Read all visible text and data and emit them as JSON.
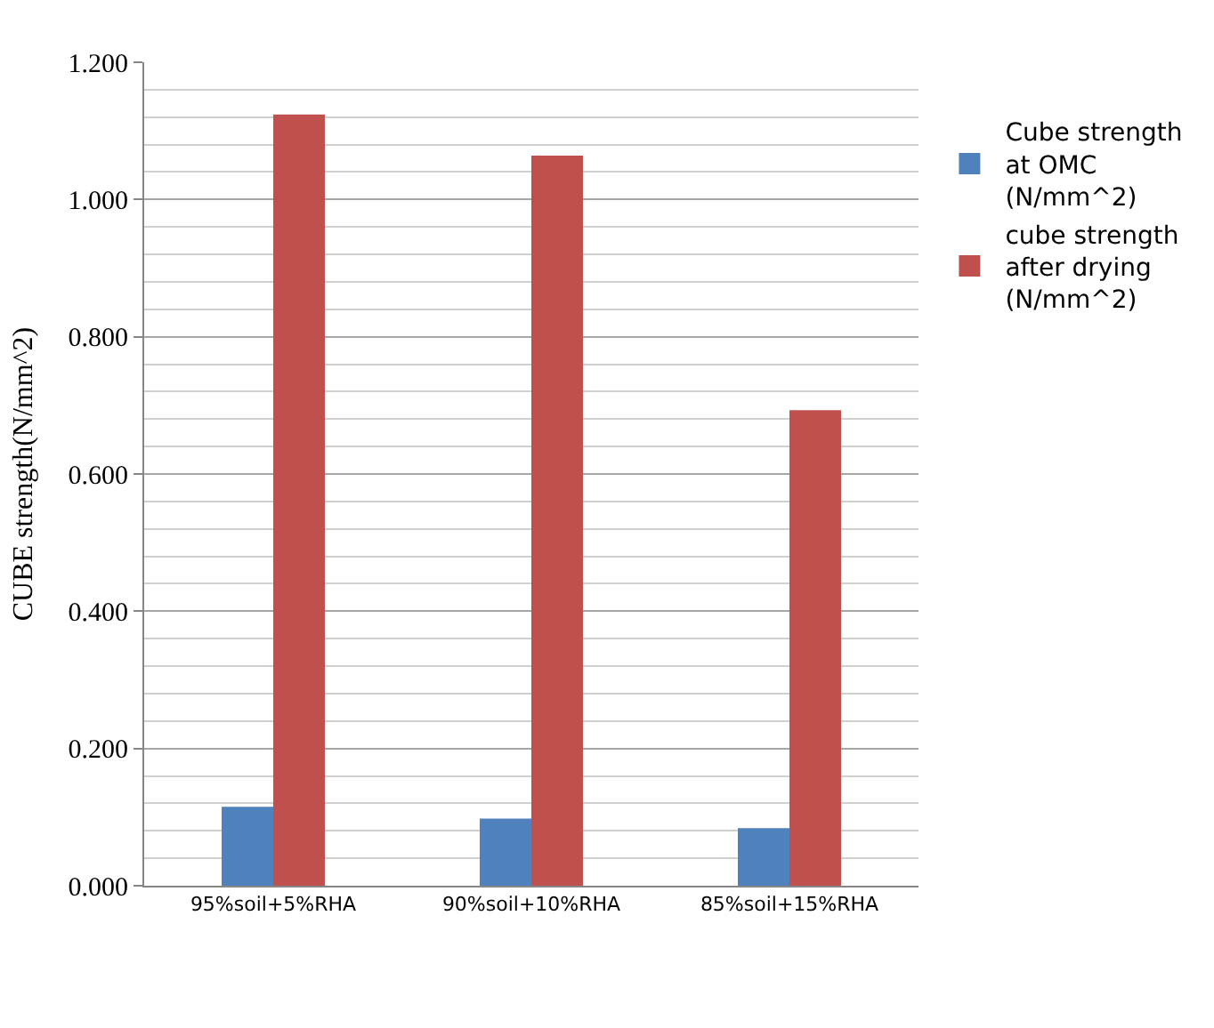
{
  "chart_data": {
    "type": "bar",
    "ylabel": "CUBE strength(N/mm^2)",
    "categories": [
      "95%soil+5%RHA",
      "90%soil+10%RHA",
      "85%soil+15%RHA"
    ],
    "series": [
      {
        "name": "Cube strength at OMC (N/mm^2)",
        "color": "#4f81bd",
        "values": [
          0.115,
          0.098,
          0.084
        ]
      },
      {
        "name": "cube strength after drying (N/mm^2)",
        "color": "#c0504d",
        "values": [
          1.124,
          1.064,
          0.693
        ]
      }
    ],
    "ylim": [
      0,
      1.2
    ],
    "yticks": [
      {
        "value": 0,
        "label": "0.000"
      },
      {
        "value": 0.2,
        "label": "0.200"
      },
      {
        "value": 0.4,
        "label": "0.400"
      },
      {
        "value": 0.6,
        "label": "0.600"
      },
      {
        "value": 0.8,
        "label": "0.800"
      },
      {
        "value": 1.0,
        "label": "1.000"
      },
      {
        "value": 1.2,
        "label": "1.200"
      }
    ],
    "grid": "y",
    "legend": "right"
  }
}
